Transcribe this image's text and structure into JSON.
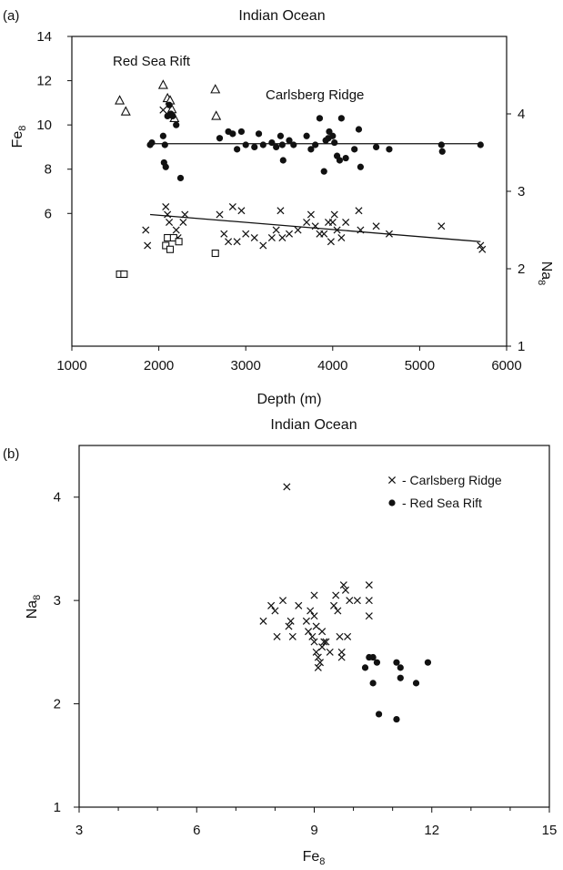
{
  "chart_data": [
    {
      "panel_label": "(a)",
      "type": "scatter",
      "title": "Indian Ocean",
      "xlabel": "Depth (m)",
      "ylabel_left": "Fe8",
      "ylabel_right": "Na8",
      "xlim": [
        1000,
        6000
      ],
      "xticks": [
        "1000",
        "2000",
        "3000",
        "4000",
        "5000",
        "6000"
      ],
      "ylim_left": [
        0,
        14
      ],
      "yticks_left": [
        "6",
        "8",
        "10",
        "12",
        "14"
      ],
      "ylim_right": [
        1,
        5
      ],
      "yticks_right": [
        "1",
        "2",
        "3",
        "4"
      ],
      "annotations": [
        "Red Sea Rift",
        "Carlsberg Ridge"
      ],
      "series": [
        {
          "marker": "triangle",
          "axis": "left",
          "points": [
            [
              1550,
              11.1
            ],
            [
              1620,
              10.6
            ],
            [
              2050,
              11.8
            ],
            [
              2100,
              11.2
            ],
            [
              2130,
              11.1
            ],
            [
              2150,
              10.7
            ],
            [
              2180,
              10.3
            ],
            [
              2650,
              11.6
            ],
            [
              2660,
              10.4
            ]
          ]
        },
        {
          "marker": "dot",
          "axis": "left",
          "points": [
            [
              1900,
              9.1
            ],
            [
              1920,
              9.2
            ],
            [
              2050,
              9.5
            ],
            [
              2070,
              9.1
            ],
            [
              2060,
              8.3
            ],
            [
              2080,
              8.1
            ],
            [
              2100,
              10.4
            ],
            [
              2120,
              10.9
            ],
            [
              2140,
              10.5
            ],
            [
              2160,
              10.4
            ],
            [
              2200,
              10.0
            ],
            [
              2250,
              7.6
            ],
            [
              2700,
              9.4
            ],
            [
              2800,
              9.7
            ],
            [
              2850,
              9.6
            ],
            [
              2900,
              8.9
            ],
            [
              2950,
              9.7
            ],
            [
              3000,
              9.1
            ],
            [
              3100,
              9.0
            ],
            [
              3150,
              9.6
            ],
            [
              3200,
              9.1
            ],
            [
              3300,
              9.2
            ],
            [
              3350,
              9.0
            ],
            [
              3400,
              9.5
            ],
            [
              3420,
              9.1
            ],
            [
              3430,
              8.4
            ],
            [
              3500,
              9.3
            ],
            [
              3550,
              9.1
            ],
            [
              3700,
              9.5
            ],
            [
              3750,
              8.9
            ],
            [
              3800,
              9.1
            ],
            [
              3850,
              10.3
            ],
            [
              3900,
              7.9
            ],
            [
              3920,
              9.3
            ],
            [
              3950,
              9.4
            ],
            [
              3960,
              9.7
            ],
            [
              4000,
              9.5
            ],
            [
              4020,
              9.2
            ],
            [
              4050,
              8.6
            ],
            [
              4080,
              8.4
            ],
            [
              4100,
              10.3
            ],
            [
              4150,
              8.5
            ],
            [
              4250,
              8.9
            ],
            [
              4300,
              9.8
            ],
            [
              4320,
              8.1
            ],
            [
              4500,
              9.0
            ],
            [
              4650,
              8.9
            ],
            [
              5250,
              9.1
            ],
            [
              5260,
              8.8
            ],
            [
              5700,
              9.1
            ]
          ]
        },
        {
          "marker": "x",
          "axis": "right",
          "points": [
            [
              1850,
              2.5
            ],
            [
              1870,
              2.3
            ],
            [
              2050,
              4.05
            ],
            [
              2080,
              2.8
            ],
            [
              2100,
              2.7
            ],
            [
              2120,
              2.6
            ],
            [
              2200,
              2.5
            ],
            [
              2220,
              2.4
            ],
            [
              2280,
              2.6
            ],
            [
              2300,
              2.7
            ],
            [
              2700,
              2.7
            ],
            [
              2750,
              2.45
            ],
            [
              2800,
              2.35
            ],
            [
              2850,
              2.8
            ],
            [
              2900,
              2.35
            ],
            [
              2950,
              2.75
            ],
            [
              3000,
              2.45
            ],
            [
              3100,
              2.4
            ],
            [
              3200,
              2.3
            ],
            [
              3300,
              2.4
            ],
            [
              3350,
              2.5
            ],
            [
              3400,
              2.75
            ],
            [
              3420,
              2.4
            ],
            [
              3500,
              2.45
            ],
            [
              3600,
              2.5
            ],
            [
              3700,
              2.6
            ],
            [
              3750,
              2.7
            ],
            [
              3800,
              2.55
            ],
            [
              3850,
              2.45
            ],
            [
              3900,
              2.45
            ],
            [
              3950,
              2.6
            ],
            [
              3980,
              2.35
            ],
            [
              4000,
              2.6
            ],
            [
              4020,
              2.7
            ],
            [
              4050,
              2.5
            ],
            [
              4100,
              2.4
            ],
            [
              4150,
              2.6
            ],
            [
              4300,
              2.75
            ],
            [
              4320,
              2.5
            ],
            [
              4500,
              2.55
            ],
            [
              4650,
              2.45
            ],
            [
              5250,
              2.55
            ],
            [
              5700,
              2.3
            ],
            [
              5720,
              2.25
            ]
          ]
        },
        {
          "marker": "square",
          "axis": "right",
          "points": [
            [
              1550,
              1.93
            ],
            [
              1600,
              1.93
            ],
            [
              2080,
              2.3
            ],
            [
              2100,
              2.4
            ],
            [
              2130,
              2.25
            ],
            [
              2170,
              2.4
            ],
            [
              2230,
              2.35
            ],
            [
              2650,
              2.2
            ]
          ]
        }
      ],
      "fits": [
        {
          "axis": "left",
          "from": [
            1900,
            9.15
          ],
          "to": [
            5700,
            9.15
          ]
        },
        {
          "axis": "right",
          "from": [
            1900,
            2.7
          ],
          "to": [
            5700,
            2.35
          ]
        }
      ]
    },
    {
      "panel_label": "(b)",
      "type": "scatter",
      "title": "Indian Ocean",
      "xlabel": "Fe8",
      "ylabel": "Na8",
      "xlim": [
        3,
        15
      ],
      "xticks": [
        "3",
        "6",
        "9",
        "12",
        "15"
      ],
      "ylim": [
        1,
        4.5
      ],
      "yticks": [
        "1",
        "2",
        "3",
        "4"
      ],
      "legend_position": "top-right",
      "series": [
        {
          "name": "- Carlsberg Ridge",
          "marker": "x",
          "points": [
            [
              8.3,
              4.1
            ],
            [
              7.7,
              2.8
            ],
            [
              7.9,
              2.95
            ],
            [
              8.0,
              2.9
            ],
            [
              8.05,
              2.65
            ],
            [
              8.2,
              3.0
            ],
            [
              8.35,
              2.75
            ],
            [
              8.4,
              2.8
            ],
            [
              8.45,
              2.65
            ],
            [
              8.6,
              2.95
            ],
            [
              8.8,
              2.8
            ],
            [
              8.85,
              2.7
            ],
            [
              8.9,
              2.9
            ],
            [
              8.95,
              2.65
            ],
            [
              9.0,
              2.6
            ],
            [
              9.0,
              3.05
            ],
            [
              9.0,
              2.85
            ],
            [
              9.05,
              2.75
            ],
            [
              9.05,
              2.5
            ],
            [
              9.1,
              2.45
            ],
            [
              9.1,
              2.35
            ],
            [
              9.15,
              2.4
            ],
            [
              9.2,
              2.55
            ],
            [
              9.2,
              2.7
            ],
            [
              9.25,
              2.6
            ],
            [
              9.3,
              2.6
            ],
            [
              9.4,
              2.5
            ],
            [
              9.5,
              2.95
            ],
            [
              9.55,
              3.05
            ],
            [
              9.6,
              2.9
            ],
            [
              9.65,
              2.65
            ],
            [
              9.7,
              2.5
            ],
            [
              9.7,
              2.45
            ],
            [
              9.75,
              3.15
            ],
            [
              9.8,
              3.1
            ],
            [
              9.85,
              2.65
            ],
            [
              9.9,
              3.0
            ],
            [
              10.1,
              3.0
            ],
            [
              10.4,
              3.15
            ],
            [
              10.4,
              3.0
            ],
            [
              10.4,
              2.85
            ]
          ]
        },
        {
          "name": "- Red Sea Rift",
          "marker": "dot",
          "points": [
            [
              10.3,
              2.35
            ],
            [
              10.4,
              2.45
            ],
            [
              10.5,
              2.45
            ],
            [
              10.6,
              2.4
            ],
            [
              10.5,
              2.2
            ],
            [
              10.65,
              1.9
            ],
            [
              11.1,
              2.4
            ],
            [
              11.2,
              2.35
            ],
            [
              11.2,
              2.25
            ],
            [
              11.1,
              1.85
            ],
            [
              11.6,
              2.2
            ],
            [
              11.9,
              2.4
            ]
          ]
        }
      ]
    }
  ]
}
